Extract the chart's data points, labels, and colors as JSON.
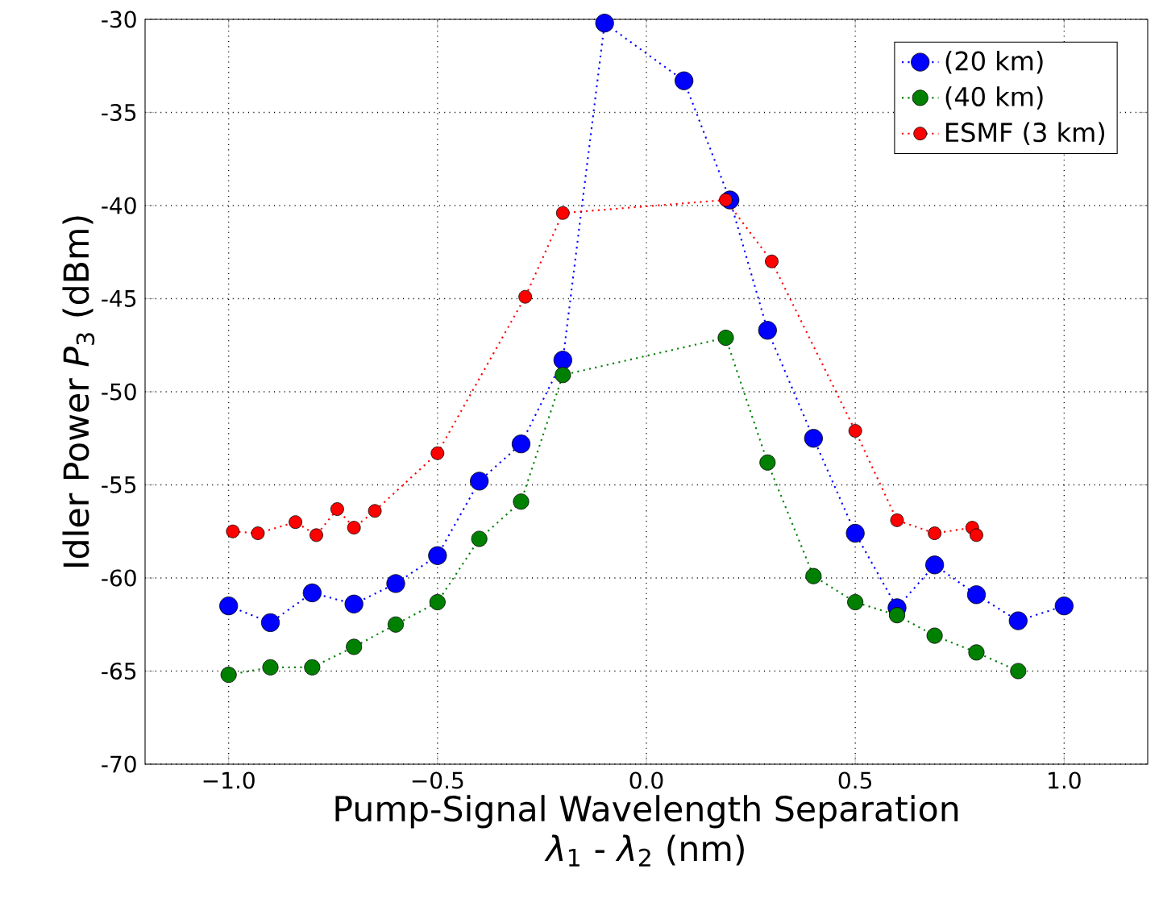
{
  "chart_data": {
    "type": "line",
    "xlabel": [
      "Pump-Signal Wavelength Separation",
      "*λ*$_{1}$ - *λ*$_{2}$ (nm)"
    ],
    "ylabel": "Idler Power *P*$_{3}$ (dBm)",
    "xlim": [
      -1.2,
      1.2
    ],
    "ylim": [
      -70,
      -30
    ],
    "xticks": [
      {
        "value": -1.0,
        "label": "−1.0"
      },
      {
        "value": -0.5,
        "label": "−0.5"
      },
      {
        "value": 0.0,
        "label": "0.0"
      },
      {
        "value": 0.5,
        "label": "0.5"
      },
      {
        "value": 1.0,
        "label": "1.0"
      }
    ],
    "yticks": [
      -70,
      -65,
      -60,
      -55,
      -50,
      -45,
      -40,
      -35,
      -30
    ],
    "grid": true,
    "legend": "top right",
    "marker": "circle",
    "line_style": "dotted",
    "series": [
      {
        "name": "(20 km)",
        "color": "#0000ff",
        "x": [
          -1.0,
          -0.9,
          -0.8,
          -0.7,
          -0.6,
          -0.5,
          -0.4,
          -0.3,
          -0.2,
          -0.1,
          0.09,
          0.2,
          0.29,
          0.4,
          0.5,
          0.6,
          0.69,
          0.79,
          0.89,
          1.0
        ],
        "values": [
          -61.5,
          -62.4,
          -60.8,
          -61.4,
          -60.3,
          -58.8,
          -54.8,
          -52.8,
          -48.3,
          -30.2,
          -33.3,
          -39.7,
          -46.7,
          -52.5,
          -57.6,
          -61.6,
          -59.3,
          -60.9,
          -62.3,
          -61.5
        ]
      },
      {
        "name": "(40 km)",
        "color": "#008000",
        "x": [
          -1.0,
          -0.9,
          -0.8,
          -0.7,
          -0.6,
          -0.5,
          -0.4,
          -0.3,
          -0.2,
          0.19,
          0.29,
          0.4,
          0.5,
          0.6,
          0.69,
          0.79,
          0.89
        ],
        "values": [
          -65.2,
          -64.8,
          -64.8,
          -63.7,
          -62.5,
          -61.3,
          -57.9,
          -55.9,
          -49.1,
          -47.1,
          -53.8,
          -59.9,
          -61.3,
          -62.0,
          -63.1,
          -64.0,
          -65.0
        ]
      },
      {
        "name": "ESMF (3 km)",
        "color": "#ff0000",
        "x": [
          -0.99,
          -0.93,
          -0.84,
          -0.79,
          -0.74,
          -0.7,
          -0.65,
          -0.5,
          -0.29,
          -0.2,
          0.19,
          0.3,
          0.5,
          0.6,
          0.69,
          0.78,
          0.79
        ],
        "values": [
          -57.5,
          -57.6,
          -57.0,
          -57.7,
          -56.3,
          -57.3,
          -56.4,
          -53.3,
          -44.9,
          -40.4,
          -39.7,
          -43.0,
          -52.1,
          -56.9,
          -57.6,
          -57.3,
          -57.7
        ]
      }
    ]
  }
}
